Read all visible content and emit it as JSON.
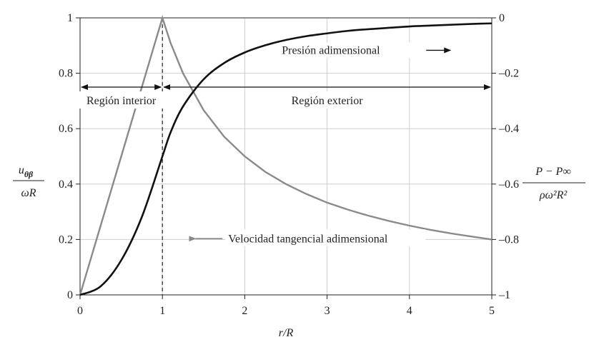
{
  "chart_data": {
    "type": "line",
    "title": "",
    "xlabel": "r/R",
    "xlim": [
      0,
      5
    ],
    "x_ticks": [
      "0",
      "1",
      "2",
      "3",
      "4",
      "5"
    ],
    "left_axis": {
      "label_num": "u",
      "label_num_sub": "θβ",
      "label_den": "ωR",
      "ylim": [
        0,
        1
      ],
      "ticks": [
        "0",
        "0.2",
        "0.4",
        "0.6",
        "0.8",
        "1"
      ]
    },
    "right_axis": {
      "label_num": "P − P∞",
      "label_den": "ρω²R²",
      "ylim": [
        -1,
        0
      ],
      "ticks": [
        "–1",
        "–0.8",
        "–0.6",
        "–0.4",
        "–0.2",
        "0"
      ]
    },
    "grid": true,
    "series": [
      {
        "name": "Velocidad tangencial adimensional",
        "axis": "left",
        "color": "#8a8a8a",
        "x": [
          0,
          0.25,
          0.5,
          0.75,
          1,
          1.1,
          1.25,
          1.5,
          1.75,
          2,
          2.25,
          2.5,
          2.75,
          3,
          3.25,
          3.5,
          3.75,
          4,
          4.25,
          4.5,
          4.75,
          5
        ],
        "y": [
          0,
          0.25,
          0.5,
          0.75,
          1,
          0.909,
          0.8,
          0.667,
          0.571,
          0.5,
          0.444,
          0.4,
          0.364,
          0.333,
          0.308,
          0.286,
          0.267,
          0.25,
          0.235,
          0.222,
          0.211,
          0.2
        ]
      },
      {
        "name": "Presión adimensional",
        "axis": "right",
        "color": "#111111",
        "x": [
          0,
          0.25,
          0.5,
          0.75,
          1,
          1.1,
          1.25,
          1.5,
          1.75,
          2,
          2.25,
          2.5,
          2.75,
          3,
          3.25,
          3.5,
          3.75,
          4,
          4.25,
          4.5,
          4.75,
          5
        ],
        "y": [
          -1,
          -0.969,
          -0.875,
          -0.719,
          -0.5,
          -0.413,
          -0.32,
          -0.222,
          -0.163,
          -0.125,
          -0.099,
          -0.08,
          -0.066,
          -0.056,
          -0.047,
          -0.041,
          -0.036,
          -0.031,
          -0.028,
          -0.025,
          -0.022,
          -0.02
        ]
      }
    ],
    "regions": [
      {
        "label": "Región interior",
        "x_start": 0,
        "x_end": 1,
        "y": 0.75
      },
      {
        "label": "Región exterior",
        "x_start": 1,
        "x_end": 5,
        "y": 0.75
      }
    ],
    "annotations": [
      {
        "text": "Presión adimensional",
        "x": 2.45,
        "y": 0.87,
        "arrow": "right"
      },
      {
        "text": "Velocidad tangencial adimensional",
        "x": 1.4,
        "y": 0.19,
        "arrow": "left"
      }
    ],
    "divider_x": 1
  }
}
